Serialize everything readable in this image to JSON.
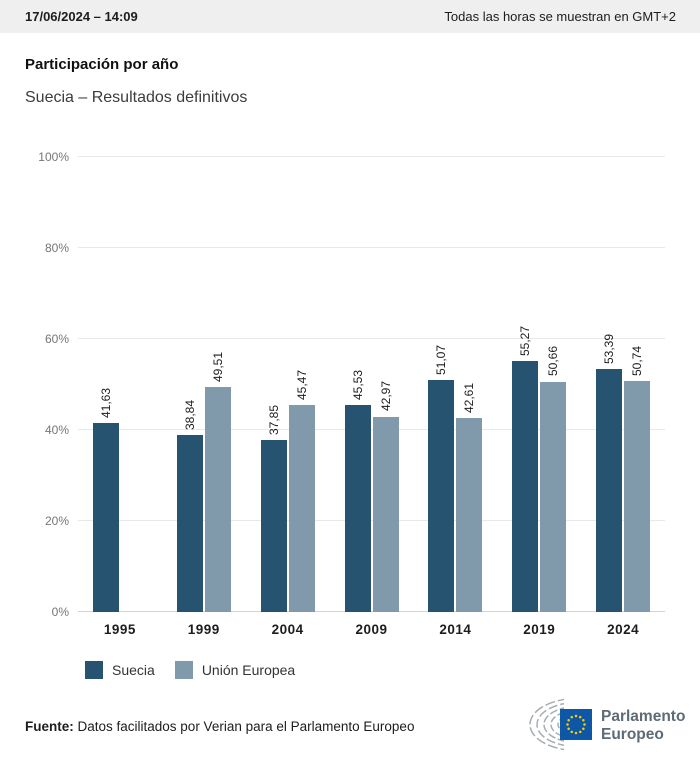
{
  "header": {
    "datetime": "17/06/2024 – 14:09",
    "timezone_note": "Todas las horas se muestran en GMT+2"
  },
  "title": "Participación por año",
  "subtitle": "Suecia – Resultados definitivos",
  "chart_data": {
    "type": "bar",
    "title": "Participación por año",
    "subtitle": "Suecia – Resultados definitivos",
    "categories": [
      "1995",
      "1999",
      "2004",
      "2009",
      "2014",
      "2019",
      "2024"
    ],
    "series": [
      {
        "name": "Suecia",
        "color": "#265370",
        "values": [
          41.63,
          38.84,
          37.85,
          45.53,
          51.07,
          55.27,
          53.39
        ]
      },
      {
        "name": "Unión Europea",
        "color": "#8099AB",
        "values": [
          null,
          49.51,
          45.47,
          42.97,
          42.61,
          50.66,
          50.74
        ]
      }
    ],
    "value_label_decimal_separator": ",",
    "xlabel": "",
    "ylabel": "",
    "ylim": [
      0,
      100
    ],
    "yticks": [
      "0%",
      "20%",
      "40%",
      "60%",
      "80%",
      "100%"
    ],
    "grid": true,
    "legend_position": "bottom"
  },
  "legend": {
    "items": [
      {
        "label": "Suecia",
        "color": "#265370"
      },
      {
        "label": "Unión Europea",
        "color": "#8099AB"
      }
    ]
  },
  "footer": {
    "source_label": "Fuente:",
    "source_text": " Datos facilitados por Verian para el Parlamento Europeo"
  },
  "logo": {
    "line1": "Parlamento",
    "line2": "Europeo",
    "flag_blue": "#0E56A6",
    "star_yellow": "#FFCC00",
    "hemicycle_gray": "#A8ADB2",
    "text_color": "#5D6B77"
  }
}
